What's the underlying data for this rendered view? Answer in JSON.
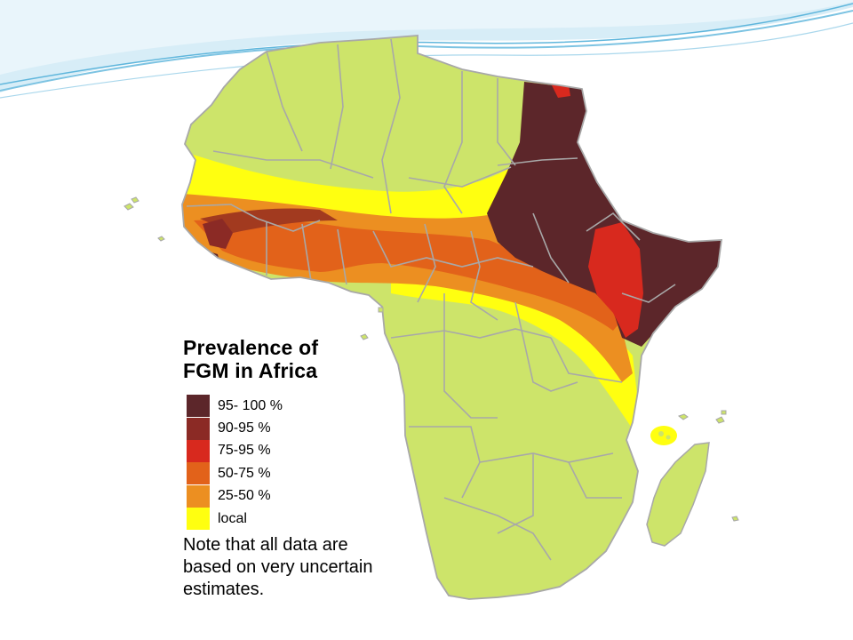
{
  "legend": {
    "title_line1": "Prevalence of",
    "title_line2": "FGM in Africa",
    "items": [
      {
        "label": "95- 100 %",
        "color": "#5c262a"
      },
      {
        "label": "90-95 %",
        "color": "#8b2a25"
      },
      {
        "label": "75-95 %",
        "color": "#d8291e"
      },
      {
        "label": "50-75 %",
        "color": "#e2621a"
      },
      {
        "label": "25-50 %",
        "color": "#ec8f21"
      },
      {
        "label": "local",
        "color": "#ffff10"
      }
    ],
    "note": "Note that all data are based on very uncertain estimates."
  },
  "map": {
    "land_color": "#cde46a",
    "border_color": "#a8a8a8"
  },
  "theme": {
    "swoosh_colors": [
      "#cfe8f4",
      "#9fd2ea",
      "#5fb6dc"
    ]
  }
}
